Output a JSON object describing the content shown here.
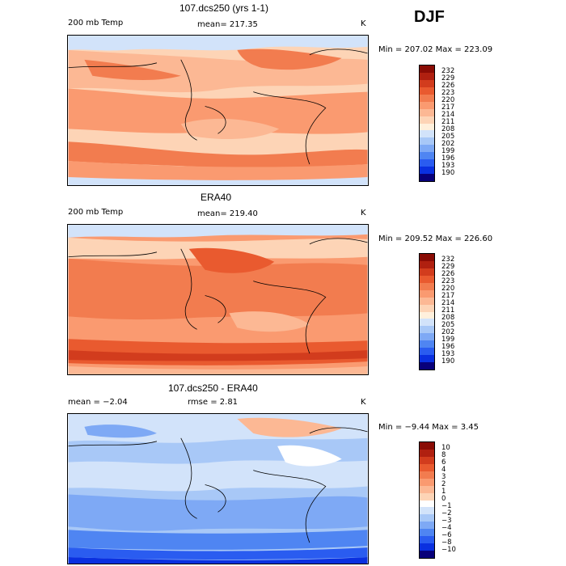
{
  "season": "DJF",
  "colors": {
    "temp": [
      "#08007a",
      "#0a30e0",
      "#2a5cf0",
      "#4f85f2",
      "#7ea9f5",
      "#a8c8f7",
      "#d2e3fa",
      "#fff0dc",
      "#fdd4b6",
      "#fcb894",
      "#fa9a70",
      "#f27c4f",
      "#e95a2f",
      "#d23c1d",
      "#b02010",
      "#8a0c05"
    ],
    "diff": [
      "#08007a",
      "#0a30e0",
      "#2a5cf0",
      "#4f85f2",
      "#7ea9f5",
      "#a8c8f7",
      "#d2e3fa",
      "#ffffff",
      "#fdd4b6",
      "#fcb894",
      "#fa9a70",
      "#f27c4f",
      "#e95a2f",
      "#d23c1d",
      "#b02010",
      "#8a0c05"
    ],
    "coast": "#000000"
  },
  "chart_data": [
    {
      "type": "heatmap",
      "title": "107.dcs250 (yrs 1-1)",
      "field_label": "200 mb Temp",
      "mean_text": "mean= 217.35",
      "unit": "K",
      "range_text": "Min = 207.02 Max = 223.09",
      "min": 207.02,
      "max": 223.09,
      "mean": 217.35,
      "colorbar_ticks": [
        "232",
        "229",
        "226",
        "223",
        "220",
        "217",
        "214",
        "211",
        "208",
        "205",
        "202",
        "199",
        "196",
        "193",
        "190"
      ],
      "colorbar_values": [
        232,
        229,
        226,
        223,
        220,
        217,
        214,
        211,
        208,
        205,
        202,
        199,
        196,
        193,
        190
      ]
    },
    {
      "type": "heatmap",
      "title": "ERA40",
      "field_label": "200 mb Temp",
      "mean_text": "mean= 219.40",
      "unit": "K",
      "range_text": "Min = 209.52 Max = 226.60",
      "min": 209.52,
      "max": 226.6,
      "mean": 219.4,
      "colorbar_ticks": [
        "232",
        "229",
        "226",
        "223",
        "220",
        "217",
        "214",
        "211",
        "208",
        "205",
        "202",
        "199",
        "196",
        "193",
        "190"
      ],
      "colorbar_values": [
        232,
        229,
        226,
        223,
        220,
        217,
        214,
        211,
        208,
        205,
        202,
        199,
        196,
        193,
        190
      ]
    },
    {
      "type": "heatmap",
      "title": "107.dcs250 - ERA40",
      "field_label": "",
      "mean_text": "mean =  −2.04",
      "rmse_text": "rmse =   2.81",
      "unit": "K",
      "range_text": "Min =  −9.44 Max =   3.45",
      "min": -9.44,
      "max": 3.45,
      "mean": -2.04,
      "rmse": 2.81,
      "colorbar_ticks": [
        "10",
        "8",
        "6",
        "4",
        "3",
        "2",
        "1",
        "0",
        "−1",
        "−2",
        "−3",
        "−4",
        "−6",
        "−8",
        "−10"
      ],
      "colorbar_values": [
        10,
        8,
        6,
        4,
        3,
        2,
        1,
        0,
        -1,
        -2,
        -3,
        -4,
        -6,
        -8,
        -10
      ]
    }
  ]
}
